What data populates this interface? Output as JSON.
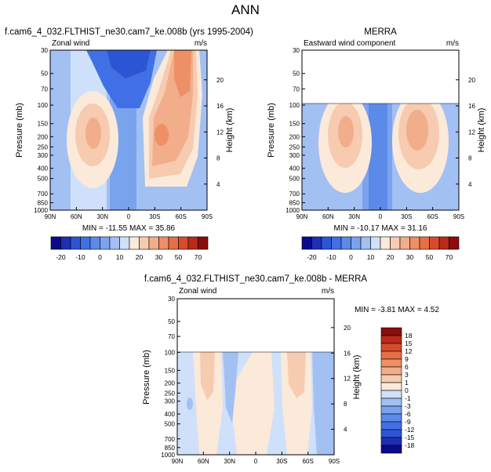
{
  "page": {
    "title": "ANN"
  },
  "chart_data": [
    {
      "type": "heatmap",
      "title": "f.cam6_4_032.FLTHIST_ne30.cam7_ke.008b (yrs 1995-2004)",
      "subtitle_left": "Zonal wind",
      "subtitle_right": "m/s",
      "ylabel": "Pressure (mb)",
      "y2label": "Height (km)",
      "xticks": [
        "90N",
        "60N",
        "30N",
        "0",
        "30S",
        "60S",
        "90S"
      ],
      "yticks": [
        "30",
        "50",
        "70",
        "100",
        "150",
        "200",
        "250",
        "300",
        "400",
        "500",
        "700",
        "850",
        "1000"
      ],
      "y2ticks": [
        "20",
        "16",
        "12",
        "8",
        "4"
      ],
      "min": -11.55,
      "max": 35.86,
      "stats_label": "MIN = -11.55   MAX = 35.86"
    },
    {
      "type": "heatmap",
      "title": "MERRA",
      "subtitle_left": "Eastward wind component",
      "subtitle_right": "m/s",
      "ylabel": "Pressure (mb)",
      "y2label": "Height (km)",
      "xticks": [
        "90N",
        "60N",
        "30N",
        "0",
        "30S",
        "60S",
        "90S"
      ],
      "yticks": [
        "30",
        "50",
        "70",
        "100",
        "150",
        "200",
        "250",
        "300",
        "400",
        "500",
        "700",
        "850",
        "1000"
      ],
      "y2ticks": [
        "20",
        "16",
        "12",
        "8",
        "4"
      ],
      "data_top_pressure": 100,
      "min": -10.17,
      "max": 31.16,
      "stats_label": "MIN = -10.17   MAX = 31.16"
    },
    {
      "type": "heatmap",
      "title": "f.cam6_4_032.FLTHIST_ne30.cam7_ke.008b - MERRA",
      "subtitle_left": "Zonal wind",
      "subtitle_right": "m/s",
      "ylabel": "Pressure (mb)",
      "y2label": "Height (km)",
      "xticks": [
        "90N",
        "60N",
        "30N",
        "0",
        "30S",
        "60S",
        "90S"
      ],
      "yticks": [
        "30",
        "50",
        "70",
        "100",
        "150",
        "200",
        "250",
        "300",
        "400",
        "500",
        "700",
        "850",
        "1000"
      ],
      "y2ticks": [
        "20",
        "16",
        "12",
        "8",
        "4"
      ],
      "data_top_pressure": 100,
      "min": -3.81,
      "max": 4.52,
      "stats_label": "MIN = -3.81   MAX =  4.52"
    }
  ],
  "colorbars": {
    "main": {
      "labels": [
        "-20",
        "-10",
        "0",
        "10",
        "20",
        "30",
        "50",
        "70"
      ],
      "colors": [
        "#0a0a8c",
        "#1e2fb4",
        "#2c55d6",
        "#4170e6",
        "#5b8ae8",
        "#7aa3ee",
        "#a3c0f3",
        "#cfe0fa",
        "#fbe9da",
        "#f6cbb0",
        "#f2ad8b",
        "#ee8f66",
        "#e66f45",
        "#d64c2a",
        "#b92a1a",
        "#8c0c0c"
      ]
    },
    "diff": {
      "labels": [
        "18",
        "15",
        "12",
        "9",
        "6",
        "3",
        "1",
        "0",
        "-1",
        "-3",
        "-6",
        "-9",
        "-12",
        "-15",
        "-18"
      ],
      "colors": [
        "#8c0c0c",
        "#b92a1a",
        "#d64c2a",
        "#e66f45",
        "#ee8f66",
        "#f2ad8b",
        "#f6cbb0",
        "#fbe9da",
        "#cfe0fa",
        "#a3c0f3",
        "#7aa3ee",
        "#5b8ae8",
        "#4170e6",
        "#2c55d6",
        "#1e2fb4",
        "#0a0a8c"
      ]
    }
  }
}
